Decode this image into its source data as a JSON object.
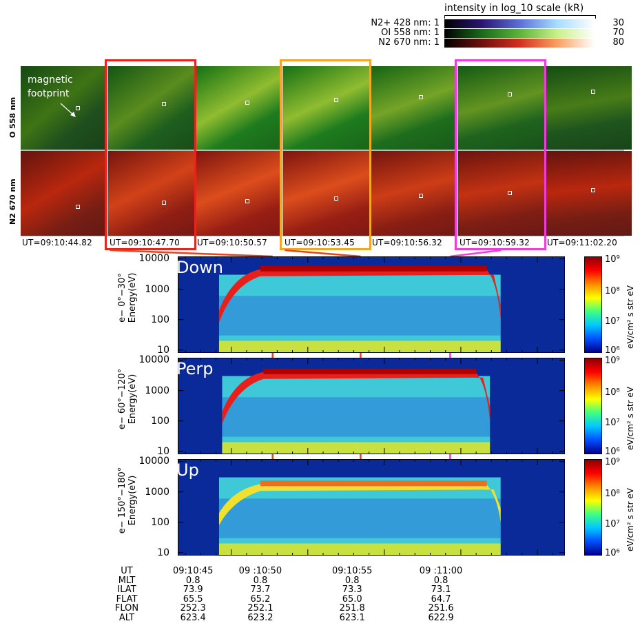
{
  "colorbar_legend": {
    "title": "intensity in log_10 scale (kR)",
    "rows": [
      {
        "label": "N2+ 428 nm:",
        "min": "1",
        "max": "30",
        "gradient": [
          "#000000",
          "#2b1570",
          "#5a6fd6",
          "#a8dcff",
          "#ffffff"
        ]
      },
      {
        "label": "OI 558 nm:",
        "min": "1",
        "max": "70",
        "gradient": [
          "#000000",
          "#1a6a1a",
          "#5bb33a",
          "#c9f08a",
          "#ffffff"
        ]
      },
      {
        "label": "N2 670 nm:",
        "min": "1",
        "max": "80",
        "gradient": [
          "#000000",
          "#6e0f0f",
          "#d23020",
          "#f8a060",
          "#ffffff"
        ]
      }
    ]
  },
  "auroral_images": {
    "row_labels": [
      "O 558 nm",
      "N2 670 nm"
    ],
    "annotation": [
      "magnetic",
      "footprint"
    ],
    "frames": [
      {
        "time": "UT=09:10:44.82",
        "highlight": "",
        "green": 0.35,
        "red": 0.35
      },
      {
        "time": "UT=09:10:47.70",
        "highlight": "#e8231c",
        "green": 0.5,
        "red": 0.6
      },
      {
        "time": "UT=09:10:50.57",
        "highlight": "",
        "green": 0.8,
        "red": 0.7
      },
      {
        "time": "UT=09:10:53.45",
        "highlight": "#f5a623",
        "green": 0.8,
        "red": 0.7
      },
      {
        "time": "UT=09:10:56.32",
        "highlight": "",
        "green": 0.65,
        "red": 0.55
      },
      {
        "time": "UT=09:10:59.32",
        "highlight": "#f03cdc",
        "green": 0.55,
        "red": 0.45
      },
      {
        "time": "UT=09:11:02.20",
        "highlight": "",
        "green": 0.4,
        "red": 0.35
      }
    ]
  },
  "chart_data": {
    "type": "heatmap",
    "x_axis": {
      "label": "UT",
      "ticks": [
        "09:10:45",
        "09 :10:50",
        "09:10:55",
        "09 :11:00"
      ],
      "range_s": [
        -3.5,
        21.8
      ]
    },
    "y_axis": {
      "scale": "log",
      "ticks": [
        "10000",
        "1000",
        "100",
        "10"
      ],
      "range_eV": [
        8,
        12000
      ]
    },
    "colorbar": {
      "unit": "eV/cm² s str eV",
      "ticks": [
        "10⁹",
        "10⁸",
        "10⁷",
        "10⁶"
      ]
    },
    "panels": [
      {
        "name": "Down",
        "ylabel_line1": "e− 0°−30°",
        "ylabel_line2": "Energy(eV)",
        "peak_energy_eV": 5000,
        "onset_s": -0.8,
        "end_s": 17.6
      },
      {
        "name": "Perp",
        "ylabel_line1": "e− 60°−120°",
        "ylabel_line2": "Energy(eV)",
        "peak_energy_eV": 4500,
        "onset_s": -0.6,
        "end_s": 16.9
      },
      {
        "name": "Up",
        "ylabel_line1": "e− 150°−180°",
        "ylabel_line2": "Energy(eV)",
        "peak_energy_eV": 2000,
        "onset_s": -0.8,
        "end_s": 17.6
      }
    ],
    "marker_lines": [
      {
        "time_s": 2.7,
        "color": "#e8421c"
      },
      {
        "time_s": 8.45,
        "color": "#e8421c"
      },
      {
        "time_s": 14.3,
        "color": "#f03cdc"
      }
    ]
  },
  "orbit_table": {
    "labels": [
      "UT",
      "MLT",
      "ILAT",
      "FLAT",
      "FLON",
      "ALT"
    ],
    "columns": [
      [
        "09:10:45",
        "0.8",
        "73.9",
        "65.5",
        "252.3",
        "623.4"
      ],
      [
        "09 :10:50",
        "0.8",
        "73.7",
        "65.2",
        "252.1",
        "623.2"
      ],
      [
        "09:10:55",
        "0.8",
        "73.3",
        "65.0",
        "251.8",
        "623.1"
      ],
      [
        "09 :11:00",
        "0.8",
        "73.1",
        "64.7",
        "251.6",
        "622.9"
      ]
    ]
  }
}
